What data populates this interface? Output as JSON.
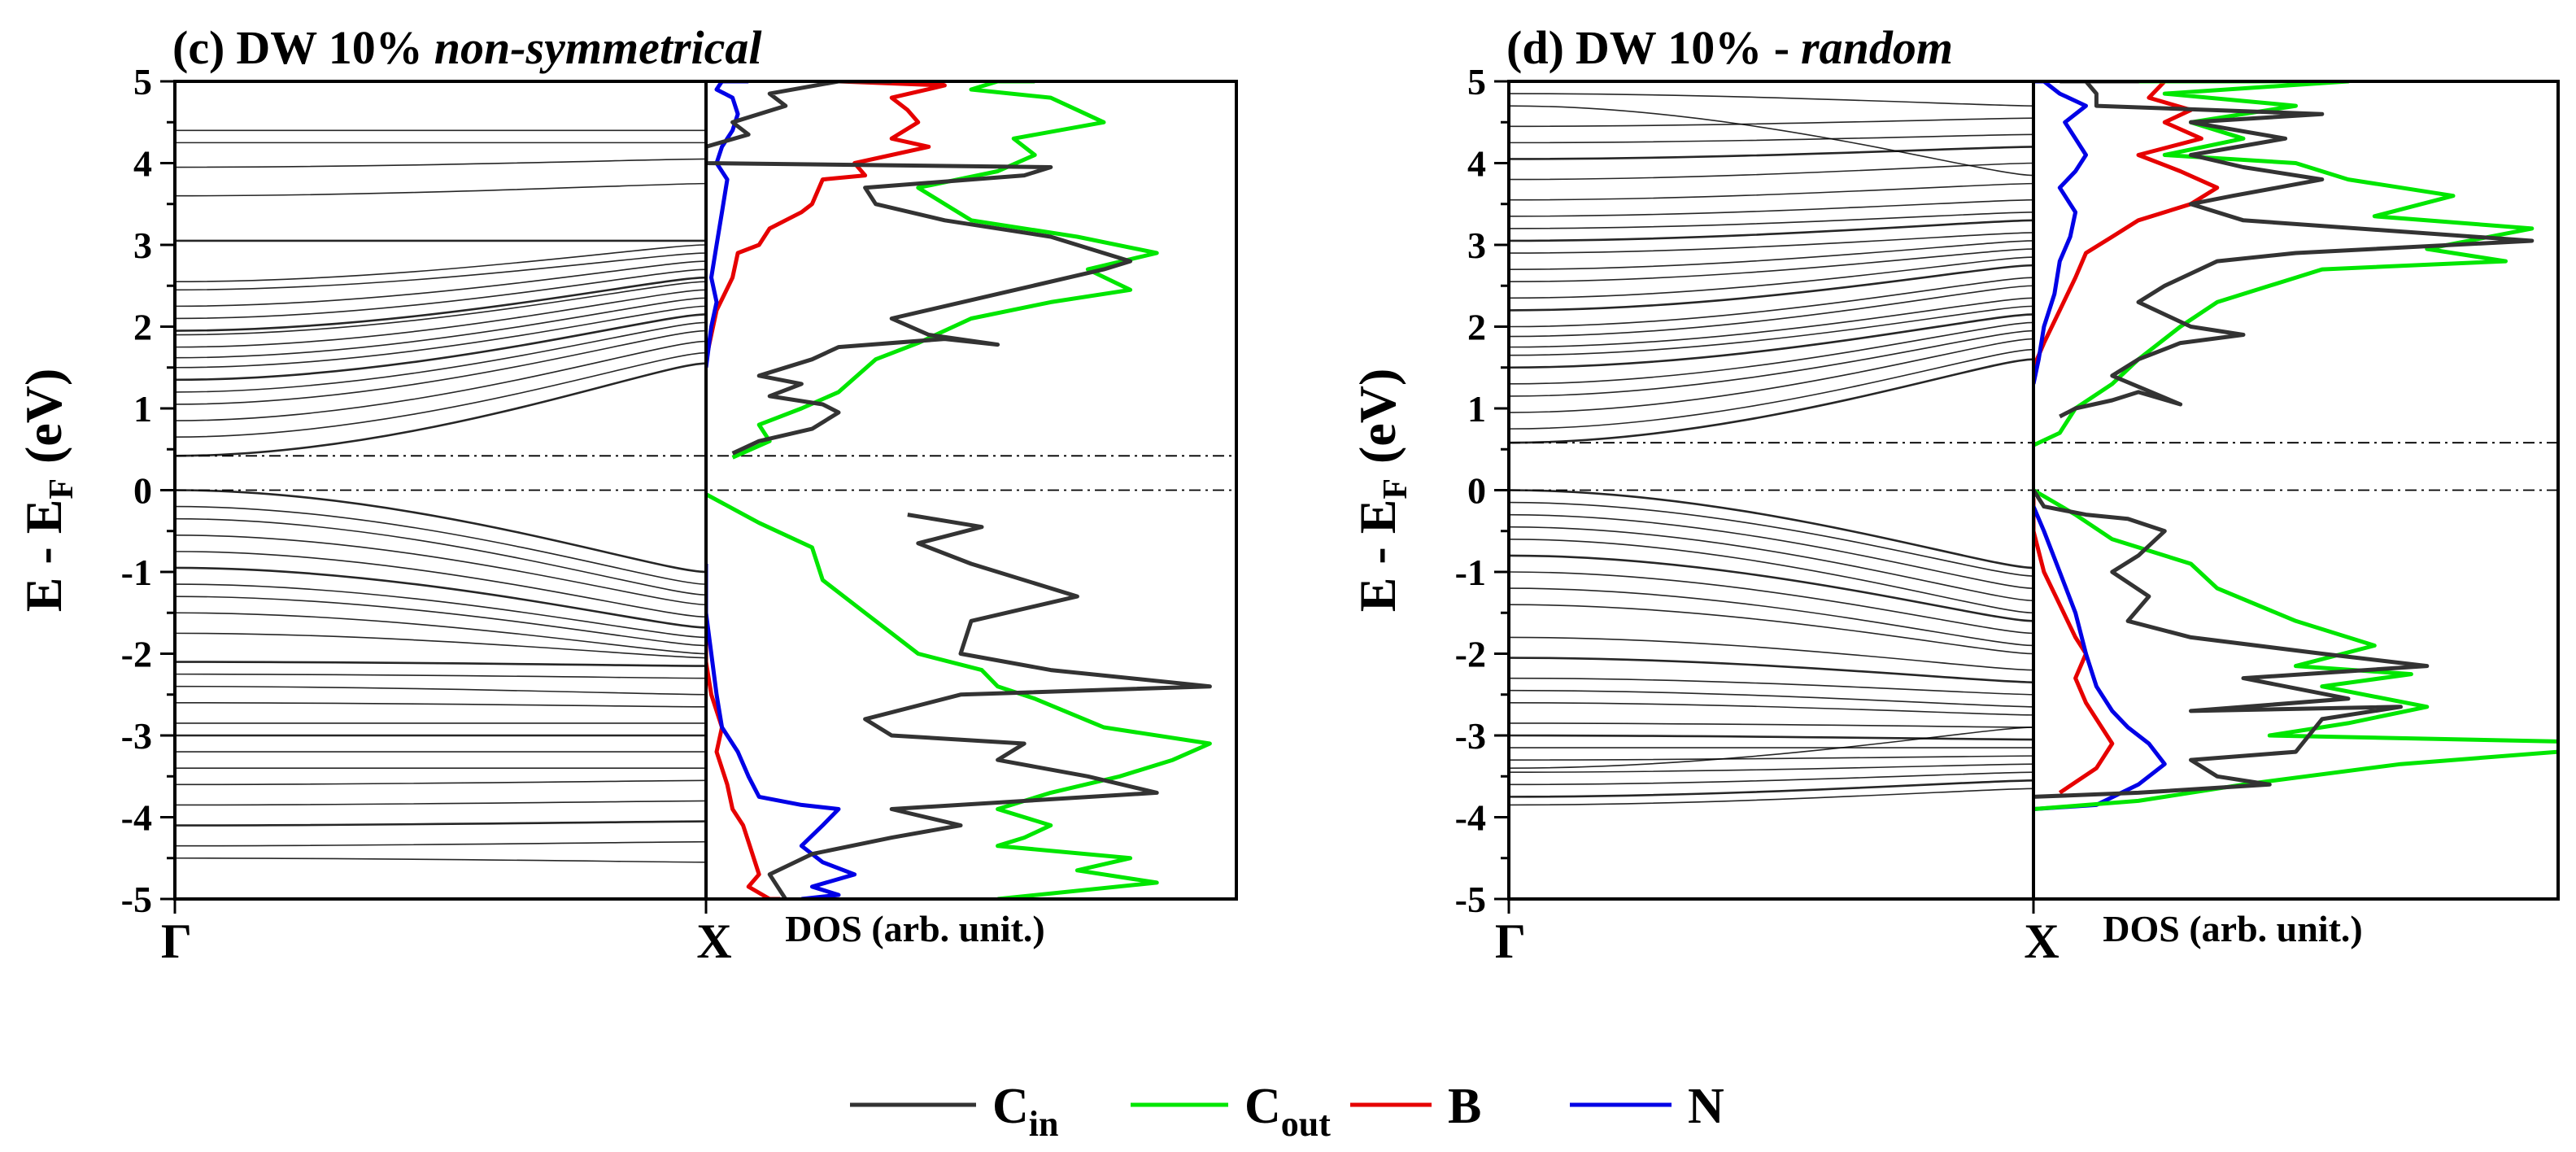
{
  "chart_data": [
    {
      "type": "line",
      "panel_letter": "(c)",
      "title_plain": "DW 10%",
      "title_italic": "non-symmetrical",
      "ylabel_main": "E - E",
      "ylabel_sub": "F",
      "ylabel_unit": "(eV)",
      "ylim": [
        -5,
        5
      ],
      "yticks": [
        "5",
        "4",
        "3",
        "2",
        "1",
        "0",
        "-1",
        "-2",
        "-3",
        "-4",
        "-5"
      ],
      "kpoints": [
        "Γ",
        "X"
      ],
      "dos_xlabel": "DOS (arb. unit.)",
      "reference_lines": [
        0.0,
        0.42
      ],
      "bands_conduction": [
        [
          0.42,
          1.55
        ],
        [
          0.65,
          1.68
        ],
        [
          0.85,
          1.82
        ],
        [
          1.05,
          1.95
        ],
        [
          1.2,
          2.05
        ],
        [
          1.35,
          2.15
        ],
        [
          1.5,
          2.25
        ],
        [
          1.62,
          2.35
        ],
        [
          1.75,
          2.45
        ],
        [
          1.9,
          2.55
        ],
        [
          1.95,
          2.6
        ],
        [
          2.1,
          2.7
        ],
        [
          2.25,
          2.8
        ],
        [
          2.45,
          2.9
        ],
        [
          2.55,
          3.0
        ],
        [
          3.05,
          3.05
        ],
        [
          3.6,
          3.75
        ],
        [
          3.95,
          4.05
        ],
        [
          4.25,
          4.25
        ],
        [
          4.4,
          4.4
        ]
      ],
      "bands_valence": [
        [
          0.0,
          -1.0
        ],
        [
          -0.2,
          -1.15
        ],
        [
          -0.35,
          -1.28
        ],
        [
          -0.55,
          -1.4
        ],
        [
          -0.75,
          -1.55
        ],
        [
          -0.95,
          -1.68
        ],
        [
          -1.15,
          -1.8
        ],
        [
          -1.3,
          -1.9
        ],
        [
          -1.5,
          -2.0
        ],
        [
          -1.75,
          -2.05
        ],
        [
          -2.1,
          -2.15
        ],
        [
          -2.25,
          -2.3
        ],
        [
          -2.4,
          -2.5
        ],
        [
          -2.6,
          -2.65
        ],
        [
          -2.85,
          -2.85
        ],
        [
          -3.0,
          -3.0
        ],
        [
          -3.2,
          -3.2
        ],
        [
          -3.4,
          -3.4
        ],
        [
          -3.6,
          -3.55
        ],
        [
          -3.85,
          -3.8
        ],
        [
          -4.1,
          -4.05
        ],
        [
          -4.35,
          -4.3
        ],
        [
          -4.5,
          -4.55
        ]
      ],
      "series": [
        {
          "name": "C_in",
          "color": "#333333",
          "x": [
            0.05,
            0.1,
            0.2,
            0.25,
            0.22,
            0.12,
            0.18,
            0.1,
            0.2,
            0.25,
            0.45,
            0.55,
            0.42,
            0.35,
            0.55,
            0.75,
            0.8,
            0.65,
            0.45,
            0.32,
            0.3,
            0.6,
            0.65,
            0.0,
            0.0,
            0.08,
            0.05,
            0.15,
            0.12,
            0.25,
            0.35,
            0.38,
            0.52,
            0.4,
            0.5,
            0.7,
            0.5,
            0.48,
            0.65,
            0.95,
            0.48,
            0.3,
            0.35,
            0.6,
            0.55,
            0.72,
            0.85,
            0.35,
            0.48,
            0.35,
            0.2,
            0.12,
            0.15
          ],
          "y": [
            0.45,
            0.6,
            0.75,
            0.95,
            1.05,
            1.15,
            1.3,
            1.4,
            1.6,
            1.75,
            1.85,
            1.78,
            1.9,
            2.1,
            2.4,
            2.7,
            2.8,
            3.1,
            3.3,
            3.5,
            3.7,
            3.85,
            3.95,
            4.0,
            4.2,
            4.35,
            4.5,
            4.7,
            4.85,
            5.0,
            5.0,
            -0.3,
            -0.45,
            -0.65,
            -0.9,
            -1.3,
            -1.6,
            -2.0,
            -2.2,
            -2.4,
            -2.5,
            -2.8,
            -3.0,
            -3.1,
            -3.3,
            -3.5,
            -3.7,
            -3.9,
            -4.1,
            -4.25,
            -4.45,
            -4.7,
            -5.0
          ]
        },
        {
          "name": "C_out",
          "color": "#00e600",
          "x": [
            0.05,
            0.12,
            0.1,
            0.18,
            0.25,
            0.32,
            0.4,
            0.5,
            0.65,
            0.8,
            0.72,
            0.85,
            0.7,
            0.5,
            0.4,
            0.55,
            0.62,
            0.58,
            0.75,
            0.7,
            0.65,
            0.5,
            0.55,
            0.62,
            0.0,
            0.1,
            0.2,
            0.22,
            0.3,
            0.35,
            0.4,
            0.52,
            0.55,
            0.62,
            0.75,
            0.95,
            0.88,
            0.78,
            0.65,
            0.55,
            0.65,
            0.6,
            0.55,
            0.8,
            0.7,
            0.85,
            0.55
          ],
          "y": [
            0.4,
            0.6,
            0.8,
            1.0,
            1.2,
            1.6,
            1.8,
            2.1,
            2.3,
            2.45,
            2.7,
            2.9,
            3.1,
            3.3,
            3.7,
            3.9,
            4.1,
            4.3,
            4.5,
            4.65,
            4.8,
            4.9,
            5.0,
            5.0,
            -0.05,
            -0.4,
            -0.7,
            -1.1,
            -1.5,
            -1.75,
            -2.0,
            -2.2,
            -2.4,
            -2.55,
            -2.9,
            -3.1,
            -3.3,
            -3.5,
            -3.7,
            -3.9,
            -4.1,
            -4.25,
            -4.35,
            -4.5,
            -4.65,
            -4.8,
            -5.0
          ]
        },
        {
          "name": "B",
          "color": "#e60000",
          "x": [
            0.0,
            0.02,
            0.05,
            0.06,
            0.1,
            0.12,
            0.15,
            0.18,
            0.2,
            0.22,
            0.3,
            0.28,
            0.42,
            0.35,
            0.4,
            0.38,
            0.35,
            0.45,
            0.25,
            0.45,
            0.45,
            0.0,
            0.0,
            0.01,
            0.03,
            0.02,
            0.04,
            0.05,
            0.07,
            0.08,
            0.09,
            0.1,
            0.08,
            0.12,
            0.14
          ],
          "y": [
            1.6,
            2.2,
            2.6,
            2.9,
            3.0,
            3.2,
            3.3,
            3.4,
            3.5,
            3.8,
            3.85,
            4.0,
            4.2,
            4.3,
            4.5,
            4.65,
            4.8,
            4.95,
            5.0,
            5.0,
            5.0,
            -1.8,
            -2.1,
            -2.5,
            -2.9,
            -3.2,
            -3.6,
            -3.9,
            -4.1,
            -4.3,
            -4.5,
            -4.7,
            -4.85,
            -5.0,
            -5.0
          ]
        },
        {
          "name": "N",
          "color": "#0000e6",
          "x": [
            0.0,
            0.01,
            0.02,
            0.01,
            0.02,
            0.03,
            0.04,
            0.02,
            0.03,
            0.05,
            0.06,
            0.05,
            0.02,
            0.03,
            0.05,
            0.06,
            0.08,
            0.0,
            0.0,
            0.01,
            0.02,
            0.03,
            0.06,
            0.08,
            0.1,
            0.18,
            0.25,
            0.22,
            0.18,
            0.22,
            0.28,
            0.2,
            0.25,
            0.18
          ],
          "y": [
            1.5,
            2.0,
            2.3,
            2.6,
            3.0,
            3.4,
            3.8,
            4.0,
            4.2,
            4.4,
            4.6,
            4.8,
            4.9,
            5.0,
            5.0,
            5.0,
            5.0,
            -0.9,
            -1.5,
            -2.0,
            -2.5,
            -2.9,
            -3.2,
            -3.5,
            -3.75,
            -3.85,
            -3.9,
            -4.1,
            -4.35,
            -4.55,
            -4.7,
            -4.85,
            -4.95,
            -5.0
          ]
        }
      ]
    },
    {
      "type": "line",
      "panel_letter": "(d)",
      "title_plain": "DW 10% -",
      "title_italic": "random",
      "ylabel_main": "E - E",
      "ylabel_sub": "F",
      "ylabel_unit": "(eV)",
      "ylim": [
        -5,
        5
      ],
      "yticks": [
        "5",
        "4",
        "3",
        "2",
        "1",
        "0",
        "-1",
        "-2",
        "-3",
        "-4",
        "-5"
      ],
      "kpoints": [
        "Γ",
        "X"
      ],
      "dos_xlabel": "DOS (arb. unit.)",
      "reference_lines": [
        0.0,
        0.58
      ],
      "bands_conduction": [
        [
          0.58,
          1.6
        ],
        [
          0.75,
          1.72
        ],
        [
          0.95,
          1.85
        ],
        [
          1.15,
          1.95
        ],
        [
          1.3,
          2.05
        ],
        [
          1.5,
          2.15
        ],
        [
          1.65,
          2.25
        ],
        [
          1.75,
          2.35
        ],
        [
          1.88,
          2.5
        ],
        [
          2.0,
          2.6
        ],
        [
          2.2,
          2.75
        ],
        [
          2.35,
          2.85
        ],
        [
          2.55,
          2.95
        ],
        [
          2.7,
          3.05
        ],
        [
          2.9,
          3.15
        ],
        [
          3.05,
          3.3
        ],
        [
          3.2,
          3.4
        ],
        [
          3.35,
          3.55
        ],
        [
          3.55,
          3.75
        ],
        [
          3.8,
          4.0
        ],
        [
          4.05,
          4.2
        ],
        [
          4.25,
          4.35
        ],
        [
          4.45,
          4.55
        ],
        [
          4.7,
          3.85
        ],
        [
          4.85,
          4.7
        ]
      ],
      "bands_valence": [
        [
          0.0,
          -0.95
        ],
        [
          -0.15,
          -1.05
        ],
        [
          -0.3,
          -1.2
        ],
        [
          -0.45,
          -1.35
        ],
        [
          -0.6,
          -1.5
        ],
        [
          -0.8,
          -1.6
        ],
        [
          -1.0,
          -1.75
        ],
        [
          -1.2,
          -1.9
        ],
        [
          -1.4,
          -2.0
        ],
        [
          -1.8,
          -2.2
        ],
        [
          -2.05,
          -2.35
        ],
        [
          -2.3,
          -2.5
        ],
        [
          -2.45,
          -2.65
        ],
        [
          -2.6,
          -2.75
        ],
        [
          -2.85,
          -2.9
        ],
        [
          -3.0,
          -3.05
        ],
        [
          -3.15,
          -3.15
        ],
        [
          -3.3,
          -3.25
        ],
        [
          -3.45,
          -3.35
        ],
        [
          -3.6,
          -3.45
        ],
        [
          -3.75,
          -3.55
        ],
        [
          -3.85,
          -3.65
        ],
        [
          -3.4,
          -2.9
        ]
      ],
      "series": [
        {
          "name": "C_in",
          "color": "#333333",
          "x": [
            0.05,
            0.08,
            0.15,
            0.2,
            0.28,
            0.15,
            0.2,
            0.28,
            0.4,
            0.3,
            0.2,
            0.25,
            0.35,
            0.5,
            0.95,
            0.4,
            0.3,
            0.38,
            0.55,
            0.4,
            0.3,
            0.48,
            0.3,
            0.55,
            0.12,
            0.12,
            0.1,
            0.15,
            0.12,
            0.2,
            0.1,
            0.05,
            0.0,
            0.02,
            0.1,
            0.18,
            0.25,
            0.2,
            0.15,
            0.22,
            0.18,
            0.3,
            0.55,
            0.75,
            0.4,
            0.6,
            0.3,
            0.7,
            0.55,
            0.5,
            0.3,
            0.35,
            0.45,
            0.2,
            0.0
          ],
          "y": [
            0.9,
            1.0,
            1.1,
            1.2,
            1.05,
            1.4,
            1.6,
            1.8,
            1.9,
            2.0,
            2.3,
            2.5,
            2.8,
            2.9,
            3.05,
            3.3,
            3.5,
            3.6,
            3.8,
            3.95,
            4.1,
            4.3,
            4.5,
            4.6,
            4.7,
            4.85,
            5.0,
            5.0,
            5.0,
            5.0,
            5.0,
            5.0,
            0.0,
            -0.2,
            -0.3,
            -0.35,
            -0.5,
            -0.8,
            -1.0,
            -1.3,
            -1.6,
            -1.8,
            -2.0,
            -2.15,
            -2.3,
            -2.55,
            -2.7,
            -2.65,
            -2.8,
            -3.2,
            -3.3,
            -3.5,
            -3.6,
            -3.7,
            -3.75
          ]
        },
        {
          "name": "C_out",
          "color": "#00e600",
          "x": [
            0.0,
            0.05,
            0.08,
            0.15,
            0.2,
            0.28,
            0.35,
            0.5,
            0.55,
            0.9,
            0.75,
            0.95,
            0.65,
            0.8,
            0.6,
            0.5,
            0.25,
            0.4,
            0.3,
            0.35,
            0.5,
            0.25,
            0.6,
            0.2,
            0.1,
            0.0,
            0.08,
            0.15,
            0.3,
            0.35,
            0.5,
            0.65,
            0.5,
            0.72,
            0.55,
            0.75,
            0.6,
            0.45,
            1.2,
            0.7,
            0.4,
            0.2,
            0.0
          ],
          "y": [
            0.55,
            0.7,
            1.0,
            1.3,
            1.6,
            2.0,
            2.3,
            2.6,
            2.7,
            2.8,
            2.95,
            3.2,
            3.35,
            3.6,
            3.8,
            4.0,
            4.1,
            4.3,
            4.5,
            4.55,
            4.7,
            4.85,
            5.0,
            5.0,
            5.0,
            0.0,
            -0.3,
            -0.6,
            -0.9,
            -1.2,
            -1.6,
            -1.9,
            -2.15,
            -2.25,
            -2.4,
            -2.65,
            -2.85,
            -3.0,
            -3.1,
            -3.35,
            -3.6,
            -3.8,
            -3.9
          ]
        },
        {
          "name": "B",
          "color": "#e60000",
          "x": [
            0.0,
            0.02,
            0.05,
            0.08,
            0.1,
            0.15,
            0.2,
            0.3,
            0.35,
            0.28,
            0.2,
            0.32,
            0.25,
            0.3,
            0.22,
            0.25,
            0.0,
            0.0,
            0.02,
            0.05,
            0.08,
            0.1,
            0.08,
            0.1,
            0.12,
            0.15,
            0.12,
            0.05
          ],
          "y": [
            1.5,
            1.8,
            2.2,
            2.6,
            2.9,
            3.1,
            3.3,
            3.5,
            3.7,
            3.9,
            4.1,
            4.3,
            4.5,
            4.65,
            4.8,
            5.0,
            -0.1,
            -0.5,
            -1.0,
            -1.4,
            -1.8,
            -2.0,
            -2.3,
            -2.6,
            -2.8,
            -3.1,
            -3.4,
            -3.7
          ]
        },
        {
          "name": "N",
          "color": "#0000e6",
          "x": [
            0.0,
            0.01,
            0.02,
            0.04,
            0.05,
            0.07,
            0.08,
            0.05,
            0.08,
            0.1,
            0.08,
            0.06,
            0.1,
            0.05,
            0.02,
            0.0,
            0.0,
            0.02,
            0.05,
            0.08,
            0.1,
            0.12,
            0.15,
            0.18,
            0.22,
            0.25,
            0.2,
            0.12,
            0.0
          ],
          "y": [
            1.3,
            1.6,
            2.0,
            2.4,
            2.8,
            3.1,
            3.4,
            3.7,
            3.9,
            4.1,
            4.3,
            4.5,
            4.7,
            4.85,
            5.0,
            5.0,
            -0.2,
            -0.5,
            -1.0,
            -1.5,
            -2.0,
            -2.4,
            -2.7,
            -2.9,
            -3.1,
            -3.35,
            -3.6,
            -3.85,
            -3.9
          ]
        }
      ]
    }
  ],
  "legend": [
    {
      "label": "C",
      "sub": "in",
      "color": "#333333"
    },
    {
      "label": "C",
      "sub": "out",
      "color": "#00e600"
    },
    {
      "label": "B",
      "sub": "",
      "color": "#e60000"
    },
    {
      "label": "N",
      "sub": "",
      "color": "#0000e6"
    }
  ]
}
